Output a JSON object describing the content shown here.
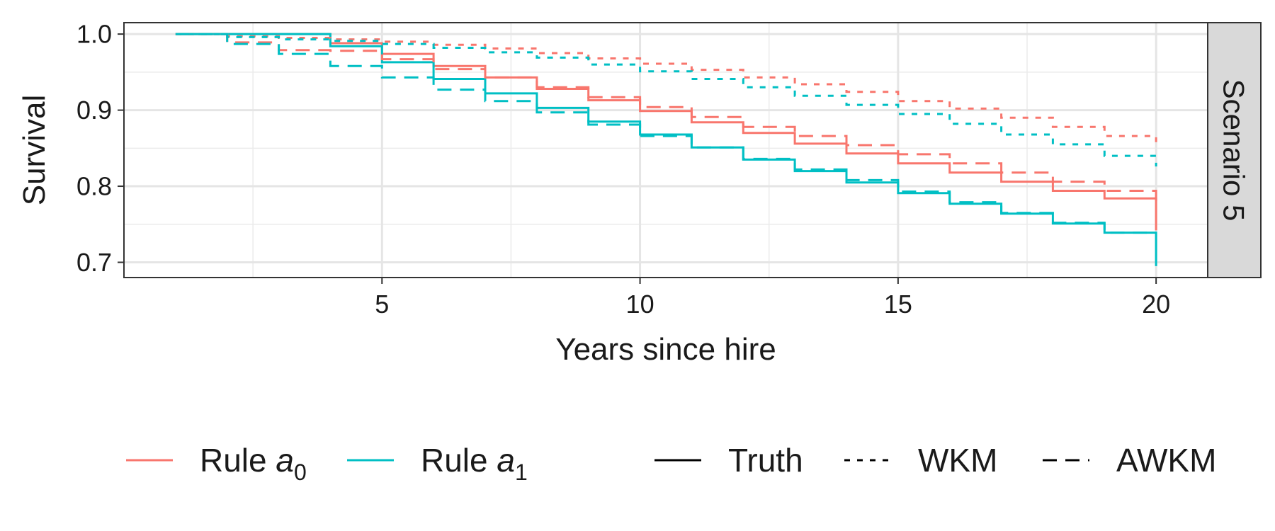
{
  "chart_data": {
    "type": "line",
    "step": true,
    "xlabel": "Years since hire",
    "ylabel": "Survival",
    "xlim": [
      0,
      21
    ],
    "ylim": [
      0.68,
      1.015
    ],
    "xticks": [
      5,
      10,
      15,
      20
    ],
    "yticks": [
      0.7,
      0.8,
      0.9,
      1.0
    ],
    "ytick_labels": [
      "0.7",
      "0.8",
      "0.9",
      "1.0"
    ],
    "grid": true,
    "facet_label": "Scenario 5",
    "legend_position": "bottom",
    "colors": {
      "rule_a0": "#F8766D",
      "rule_a1": "#00BFC4"
    },
    "legend": {
      "rules": [
        {
          "label": "Rule ",
          "symbol": "a",
          "subscript": "0",
          "color": "#F8766D"
        },
        {
          "label": "Rule ",
          "symbol": "a",
          "subscript": "1",
          "color": "#00BFC4"
        }
      ],
      "methods": [
        {
          "label": "Truth",
          "dash": "solid"
        },
        {
          "label": "WKM",
          "dash": "dotted"
        },
        {
          "label": "AWKM",
          "dash": "dashed"
        }
      ]
    },
    "series": [
      {
        "rule": "a0",
        "method": "Truth",
        "color": "#F8766D",
        "dash": "solid",
        "x": [
          1,
          4,
          5,
          6,
          7,
          8,
          9,
          10,
          11,
          12,
          13,
          14,
          15,
          16,
          17,
          18,
          19,
          20,
          20
        ],
        "y": [
          1.0,
          0.988,
          0.974,
          0.958,
          0.943,
          0.928,
          0.913,
          0.899,
          0.884,
          0.87,
          0.856,
          0.843,
          0.83,
          0.818,
          0.806,
          0.794,
          0.784,
          0.784,
          0.742
        ]
      },
      {
        "rule": "a1",
        "method": "Truth",
        "color": "#00BFC4",
        "dash": "solid",
        "x": [
          1,
          4,
          5,
          6,
          7,
          8,
          9,
          10,
          11,
          12,
          13,
          14,
          15,
          16,
          17,
          18,
          19,
          20,
          20
        ],
        "y": [
          1.0,
          0.984,
          0.963,
          0.941,
          0.922,
          0.903,
          0.885,
          0.868,
          0.851,
          0.835,
          0.82,
          0.805,
          0.791,
          0.777,
          0.764,
          0.751,
          0.739,
          0.739,
          0.695
        ]
      },
      {
        "rule": "a0",
        "method": "WKM",
        "color": "#F8766D",
        "dash": "dotted",
        "x": [
          1,
          2,
          3,
          4,
          5,
          6,
          7,
          8,
          9,
          10,
          11,
          12,
          13,
          14,
          15,
          16,
          17,
          18,
          19,
          20,
          20
        ],
        "y": [
          1.0,
          0.997,
          0.995,
          0.993,
          0.99,
          0.986,
          0.981,
          0.975,
          0.968,
          0.961,
          0.953,
          0.943,
          0.934,
          0.924,
          0.912,
          0.902,
          0.89,
          0.878,
          0.866,
          0.866,
          0.858
        ]
      },
      {
        "rule": "a1",
        "method": "WKM",
        "color": "#00BFC4",
        "dash": "dotted",
        "x": [
          1,
          2,
          3,
          4,
          5,
          6,
          7,
          8,
          9,
          10,
          11,
          12,
          13,
          14,
          15,
          16,
          17,
          18,
          19,
          20,
          20
        ],
        "y": [
          1.0,
          0.996,
          0.993,
          0.991,
          0.987,
          0.982,
          0.976,
          0.969,
          0.96,
          0.951,
          0.941,
          0.93,
          0.919,
          0.907,
          0.895,
          0.882,
          0.868,
          0.855,
          0.84,
          0.84,
          0.826
        ]
      },
      {
        "rule": "a0",
        "method": "AWKM",
        "color": "#F8766D",
        "dash": "dashed",
        "x": [
          1,
          2,
          3,
          4,
          5,
          6,
          7,
          8,
          9,
          10,
          11,
          12,
          13,
          14,
          15,
          16,
          17,
          18,
          19,
          20,
          20
        ],
        "y": [
          1.0,
          0.989,
          0.979,
          0.978,
          0.967,
          0.954,
          0.943,
          0.93,
          0.917,
          0.904,
          0.891,
          0.878,
          0.866,
          0.854,
          0.842,
          0.83,
          0.818,
          0.806,
          0.794,
          0.78,
          0.78
        ]
      },
      {
        "rule": "a1",
        "method": "AWKM",
        "color": "#00BFC4",
        "dash": "dashed",
        "x": [
          1,
          2,
          3,
          4,
          5,
          6,
          7,
          8,
          9,
          10,
          11,
          12,
          13,
          14,
          15,
          16,
          17,
          18,
          19,
          20,
          20
        ],
        "y": [
          1.0,
          0.987,
          0.974,
          0.958,
          0.943,
          0.927,
          0.912,
          0.897,
          0.881,
          0.866,
          0.851,
          0.836,
          0.822,
          0.808,
          0.793,
          0.779,
          0.765,
          0.752,
          0.739,
          0.739,
          0.739
        ]
      }
    ]
  }
}
